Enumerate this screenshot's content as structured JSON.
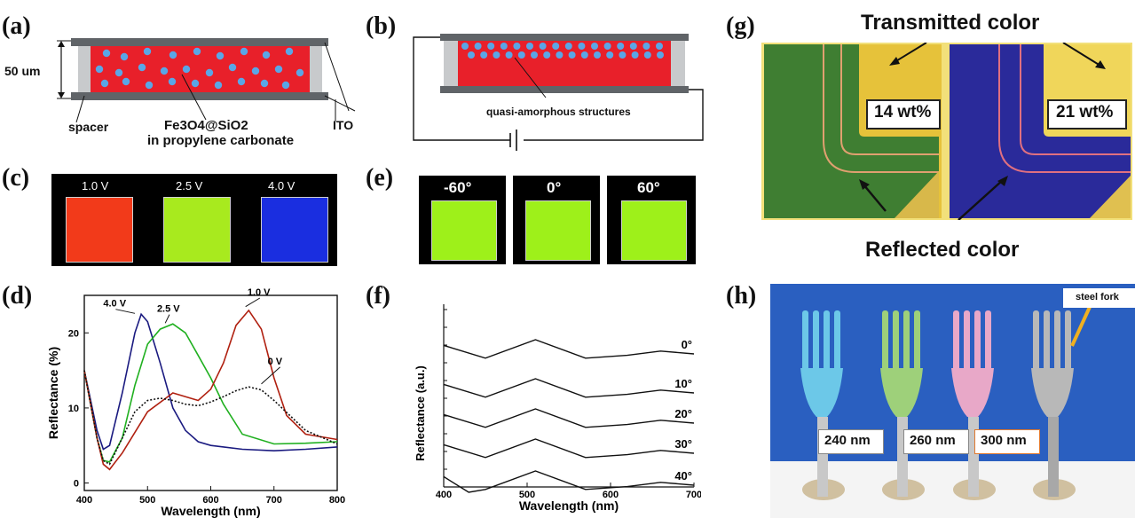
{
  "panels": {
    "a": "(a)",
    "b": "(b)",
    "c": "(c)",
    "d": "(d)",
    "e": "(e)",
    "f": "(f)",
    "g": "(g)",
    "h": "(h)"
  },
  "panel_a": {
    "thickness": "50 um",
    "spacer": "spacer",
    "particles_formula": "Fe3O4@SiO2",
    "solvent": "in propylene carbonate",
    "electrode": "ITO",
    "cell_color": "#e8202a",
    "particle_color": "#5aa6e6"
  },
  "panel_b": {
    "caption": "quasi-amorphous structures"
  },
  "panel_c": {
    "voltages": [
      "1.0 V",
      "2.5 V",
      "4.0 V"
    ],
    "colors": [
      "#f23a1a",
      "#a8ea1e",
      "#1a2ee0"
    ]
  },
  "panel_e": {
    "angles": [
      "-60°",
      "0°",
      "60°"
    ],
    "color": "#9ef01a"
  },
  "panel_g": {
    "transmitted": "Transmitted color",
    "reflected": "Reflected color",
    "conc_left": "14 wt%",
    "conc_right": "21 wt%"
  },
  "panel_h": {
    "steel": "steel fork",
    "sizes": [
      "240 nm",
      "260 nm",
      "300 nm"
    ],
    "fork_colors": [
      "#6cc8e8",
      "#9ed07a",
      "#e8a8c8",
      "#b8b8b8"
    ]
  },
  "chart_data": [
    {
      "type": "line",
      "xlabel": "Wavelength (nm)",
      "ylabel": "Reflectance (%)",
      "xlim": [
        400,
        800
      ],
      "ylim": [
        -1,
        25
      ],
      "xticks": [
        400,
        500,
        600,
        700,
        800
      ],
      "yticks": [
        0,
        10,
        20
      ],
      "series": [
        {
          "name": "4.0 V",
          "color": "#1a1a80",
          "dash": false,
          "x": [
            400,
            420,
            430,
            440,
            460,
            480,
            490,
            500,
            520,
            540,
            560,
            580,
            600,
            650,
            700,
            750,
            800
          ],
          "y": [
            15,
            7,
            4.5,
            5,
            12,
            20,
            22.5,
            21.5,
            16,
            10,
            7,
            5.5,
            5,
            4.5,
            4.3,
            4.5,
            4.8
          ]
        },
        {
          "name": "2.5 V",
          "color": "#20b020",
          "dash": false,
          "x": [
            400,
            420,
            430,
            440,
            460,
            480,
            500,
            520,
            540,
            560,
            580,
            600,
            620,
            650,
            700,
            750,
            800
          ],
          "y": [
            15,
            6,
            3,
            2.8,
            6,
            13,
            18.5,
            20.5,
            21.2,
            20,
            17,
            14,
            10.5,
            6.5,
            5.2,
            5.3,
            5.5
          ]
        },
        {
          "name": "1.0 V",
          "color": "#b02010",
          "dash": false,
          "x": [
            400,
            420,
            430,
            440,
            460,
            500,
            540,
            580,
            600,
            620,
            640,
            660,
            680,
            700,
            720,
            750,
            800
          ],
          "y": [
            15,
            6,
            2.5,
            1.8,
            4,
            9.5,
            12,
            11,
            12.5,
            16,
            21,
            23,
            20.5,
            14,
            9,
            6.5,
            5.8
          ]
        },
        {
          "name": "0 V",
          "color": "#111111",
          "dash": true,
          "x": [
            400,
            420,
            430,
            440,
            460,
            480,
            500,
            520,
            540,
            560,
            580,
            600,
            620,
            640,
            660,
            680,
            700,
            750,
            800
          ],
          "y": [
            15,
            6,
            3,
            2.5,
            6,
            9.5,
            11,
            11.3,
            11,
            10.5,
            10.3,
            10.8,
            11.5,
            12.3,
            12.8,
            12.4,
            11,
            7,
            5.2
          ]
        }
      ],
      "annotations": [
        "4.0 V",
        "2.5 V",
        "1.0 V",
        "0 V"
      ]
    },
    {
      "type": "line",
      "xlabel": "Wavelength (nm)",
      "ylabel": "Reflectance (a.u.)",
      "xlim": [
        400,
        700
      ],
      "xticks": [
        400,
        500,
        600,
        700
      ],
      "series": [
        {
          "name": "0°",
          "x": [
            400,
            450,
            510,
            570,
            620,
            660,
            700
          ],
          "y": [
            -2,
            -6.5,
            0,
            -6.5,
            -5.5,
            -4,
            -5
          ]
        },
        {
          "name": "10°",
          "x": [
            400,
            450,
            510,
            570,
            620,
            660,
            700
          ],
          "y": [
            -2,
            -6.5,
            0,
            -6.5,
            -5.5,
            -4,
            -5
          ]
        },
        {
          "name": "20°",
          "x": [
            400,
            450,
            510,
            570,
            620,
            660,
            700
          ],
          "y": [
            -2,
            -6.5,
            0,
            -6.5,
            -5.5,
            -4,
            -5
          ]
        },
        {
          "name": "30°",
          "x": [
            400,
            450,
            510,
            570,
            620,
            660,
            700
          ],
          "y": [
            -2,
            -6.5,
            0,
            -6.5,
            -5.5,
            -4,
            -5
          ]
        },
        {
          "name": "40°",
          "x": [
            400,
            430,
            450,
            510,
            570,
            620,
            660,
            700
          ],
          "y": [
            -2,
            -7.5,
            -6.5,
            0,
            -6.5,
            -5.5,
            -4,
            -5
          ]
        }
      ],
      "annotations": [
        "0°",
        "10°",
        "20°",
        "30°",
        "40°"
      ]
    }
  ]
}
